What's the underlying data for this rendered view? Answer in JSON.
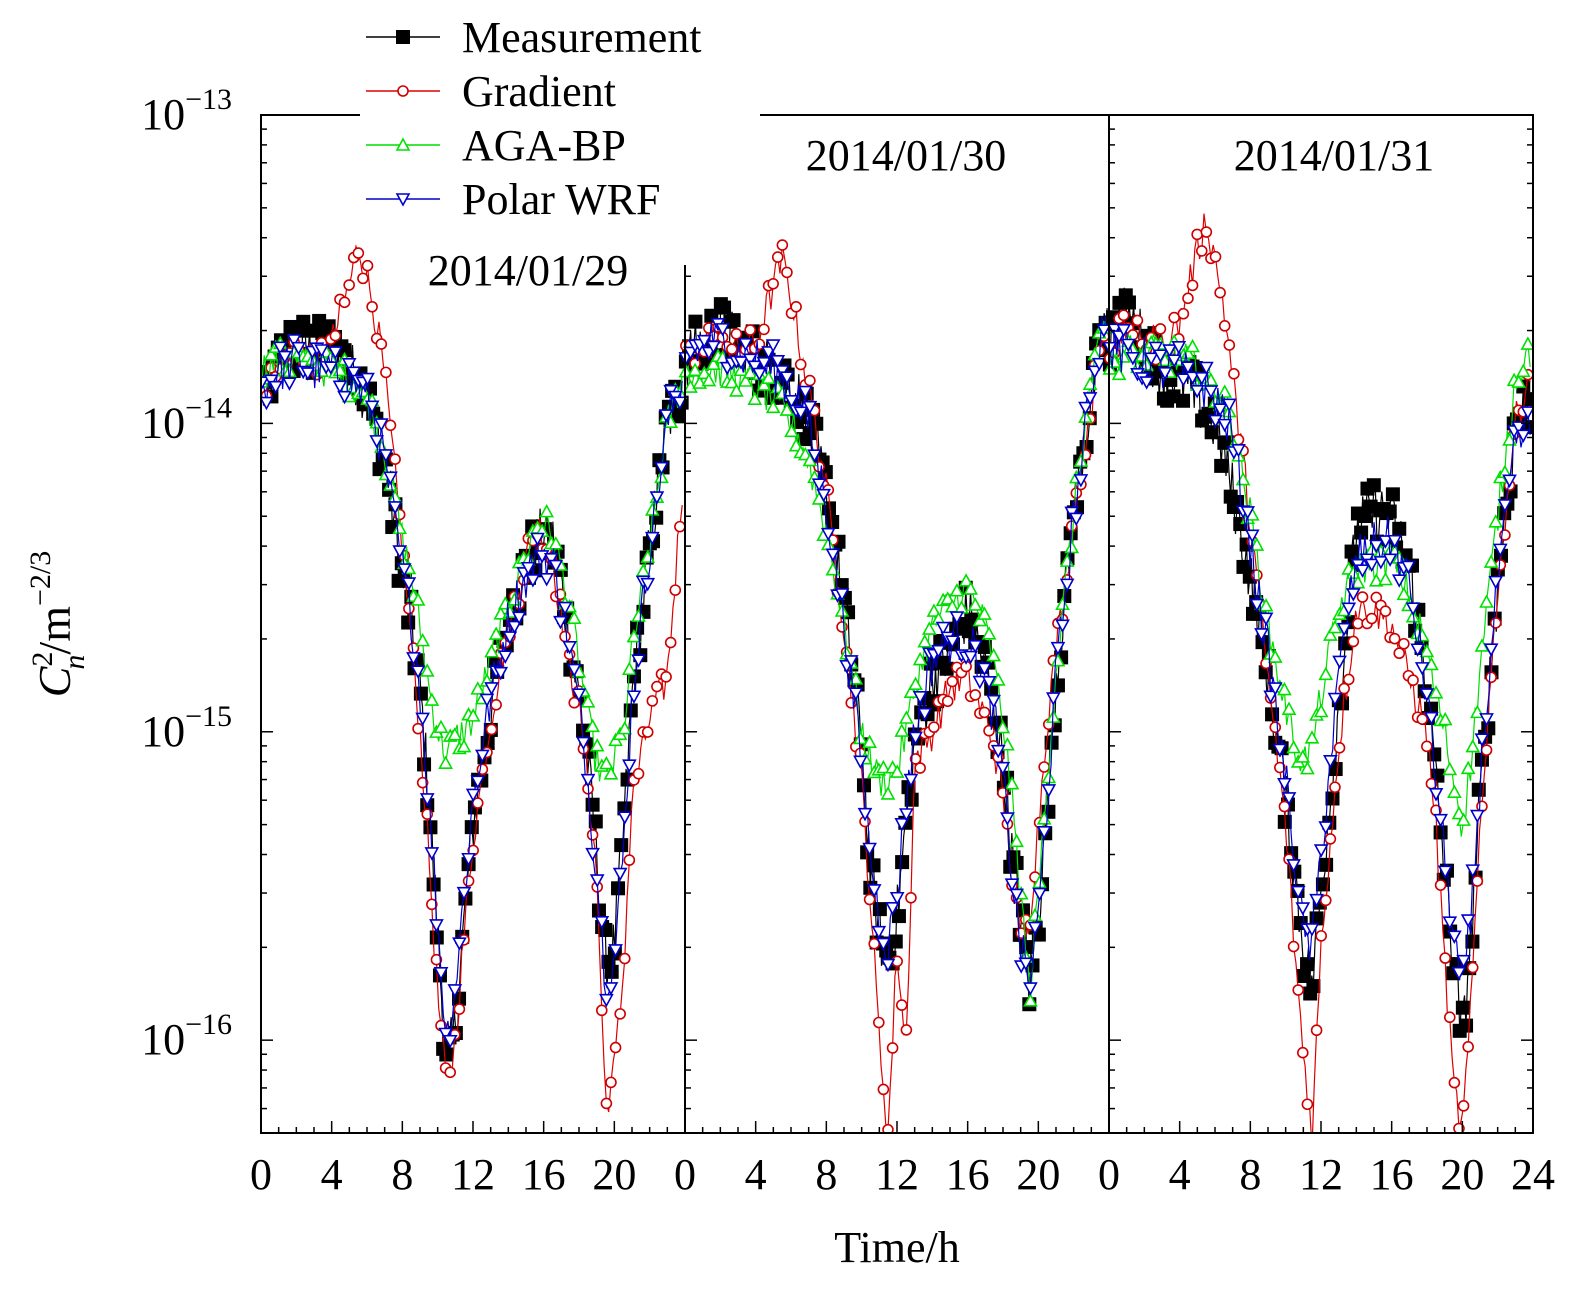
{
  "chart_data": {
    "type": "line",
    "title": "",
    "xlabel": "Time/h",
    "ylabel": {
      "base": "C",
      "sup": "2",
      "sub": "n",
      "rest": "/m",
      "rest_sup": "−2/3"
    },
    "yscale": "log",
    "ylim": [
      5e-17,
      1e-13
    ],
    "y_ticks": [
      {
        "value": 1e-13,
        "base": "10",
        "exp": "−13"
      },
      {
        "value": 1e-14,
        "base": "10",
        "exp": "−14"
      },
      {
        "value": 1e-15,
        "base": "10",
        "exp": "−15"
      },
      {
        "value": 1e-16,
        "base": "10",
        "exp": "−16"
      }
    ],
    "legend_position": "top-left",
    "series": [
      {
        "name": "Measurement",
        "color": "#000000",
        "marker": "filled-square",
        "line": "#000000"
      },
      {
        "name": "Gradient",
        "color": "#cc0000",
        "marker": "open-circle",
        "line": "#dd0000"
      },
      {
        "name": "AGA-BP",
        "color": "#00e000",
        "marker": "open-triangle-up",
        "line": "#00dd00"
      },
      {
        "name": "Polar WRF",
        "color": "#0000cc",
        "marker": "open-triangle-down",
        "line": "#0000cc"
      }
    ],
    "panels": [
      {
        "label": "2014/01/29",
        "xlim": [
          0,
          24
        ],
        "x_tick_labels": [
          "0",
          "4",
          "8",
          "12",
          "16",
          "20"
        ],
        "x": [
          0,
          1,
          2,
          3,
          4,
          5,
          5.5,
          6,
          6.5,
          7,
          7.5,
          8,
          8.5,
          9,
          9.5,
          10,
          10.5,
          11,
          11.5,
          12,
          13,
          14,
          15,
          15.5,
          16,
          16.5,
          17,
          17.5,
          18,
          18.5,
          19,
          19.5,
          20,
          20.5,
          21,
          22,
          23,
          24
        ],
        "Measurement": [
          1.2e-14,
          1.6e-14,
          1.8e-14,
          1.7e-14,
          1.8e-14,
          1.5e-14,
          1.4e-14,
          1.2e-14,
          1e-14,
          7.5e-15,
          5e-15,
          3.2e-15,
          2.2e-15,
          1.4e-15,
          6e-16,
          2.2e-16,
          8e-17,
          1.1e-16,
          2.4e-16,
          5e-16,
          1.2e-15,
          2.4e-15,
          3.4e-15,
          4e-15,
          4.4e-15,
          4.2e-15,
          3e-15,
          1.9e-15,
          1.3e-15,
          8e-16,
          4e-16,
          1.8e-16,
          2e-16,
          4.5e-16,
          1.3e-15,
          4e-15,
          1e-14,
          1.4e-14
        ],
        "Gradient": [
          1.3e-14,
          1.6e-14,
          1.7e-14,
          1.6e-14,
          1.8e-14,
          2.8e-14,
          3.8e-14,
          3e-14,
          2.2e-14,
          1.4e-14,
          7.5e-15,
          4e-15,
          2e-15,
          1e-15,
          4e-16,
          1.4e-16,
          7e-17,
          1e-16,
          2.2e-16,
          4.5e-16,
          1.1e-15,
          2.2e-15,
          3.6e-15,
          4.8e-15,
          4.4e-15,
          3.6e-15,
          2.4e-15,
          1.6e-15,
          1.2e-15,
          7e-16,
          3.5e-16,
          6e-17,
          8e-17,
          1.6e-16,
          6e-16,
          1.1e-15,
          1.5e-15,
          8e-15
        ],
        "AGA-BP": [
          1.5e-14,
          1.6e-14,
          1.6e-14,
          1.5e-14,
          1.5e-14,
          1.4e-14,
          1.3e-14,
          1.2e-14,
          1e-14,
          8e-15,
          6e-15,
          4.2e-15,
          3.2e-15,
          2.2e-15,
          1.4e-15,
          1e-15,
          8.5e-16,
          9.5e-16,
          1e-15,
          1.1e-15,
          1.7e-15,
          2.6e-15,
          3.6e-15,
          4.6e-15,
          4.8e-15,
          4.2e-15,
          3.4e-15,
          2.5e-15,
          1.7e-15,
          1.1e-15,
          8e-16,
          7e-16,
          8e-16,
          1e-15,
          1.8e-15,
          4e-15,
          1e-14,
          1.5e-14
        ],
        "Polar WRF": [
          1.3e-14,
          1.5e-14,
          1.6e-14,
          1.5e-14,
          1.5e-14,
          1.4e-14,
          1.3e-14,
          1.2e-14,
          1e-14,
          7.5e-15,
          5e-15,
          3.4e-15,
          2.4e-15,
          1.4e-15,
          6e-16,
          2.4e-16,
          1e-16,
          1.5e-16,
          3e-16,
          6e-16,
          1.3e-15,
          2.3e-15,
          3.2e-15,
          3.6e-15,
          3.8e-15,
          3.6e-15,
          2.6e-15,
          1.8e-15,
          1.2e-15,
          7e-16,
          3.5e-16,
          1.6e-16,
          1.8e-16,
          4e-16,
          1.3e-15,
          4e-15,
          1e-14,
          1.5e-14
        ]
      },
      {
        "label": "2014/01/30",
        "xlim": [
          0,
          24
        ],
        "x_tick_labels": [
          "0",
          "4",
          "8",
          "12",
          "16",
          "20"
        ],
        "x": [
          0,
          1,
          2,
          3,
          4,
          5,
          5.5,
          6,
          6.5,
          7,
          8,
          9,
          10,
          10.5,
          11,
          11.5,
          12,
          12.5,
          13,
          14,
          15,
          16,
          17,
          17.5,
          18,
          18.5,
          19,
          19.5,
          20,
          20.5,
          21,
          22,
          23,
          24
        ],
        "Measurement": [
          1.6e-14,
          1.8e-14,
          2e-14,
          1.8e-14,
          1.6e-14,
          1.5e-14,
          1.4e-14,
          1.3e-14,
          1.2e-14,
          1e-14,
          6e-15,
          2.6e-15,
          9e-16,
          3.5e-16,
          2.2e-16,
          1.8e-16,
          2.5e-16,
          5e-16,
          9e-16,
          1.5e-15,
          1.8e-15,
          2.5e-15,
          1.6e-15,
          1.2e-15,
          8e-16,
          4e-16,
          2.5e-16,
          1.5e-16,
          2.5e-16,
          6e-16,
          1.5e-15,
          5e-15,
          1.2e-14,
          2.5e-14
        ],
        "Gradient": [
          1.6e-14,
          1.8e-14,
          1.9e-14,
          1.7e-14,
          1.8e-14,
          2.8e-14,
          3.4e-14,
          2.6e-14,
          1.8e-14,
          1.3e-14,
          6e-15,
          2.2e-15,
          7e-16,
          2.8e-16,
          1e-16,
          5e-17,
          2e-16,
          9e-17,
          8e-16,
          1e-15,
          1.4e-15,
          1.5e-15,
          1.1e-15,
          9e-16,
          6e-16,
          3.5e-16,
          2e-16,
          2.5e-16,
          5e-16,
          1.1e-15,
          1.8e-15,
          5e-15,
          1.2e-14,
          2.4e-14
        ],
        "AGA-BP": [
          1.5e-14,
          1.5e-14,
          1.5e-14,
          1.4e-14,
          1.3e-14,
          1.2e-14,
          1.1e-14,
          1e-14,
          9e-15,
          7.5e-15,
          4.5e-15,
          2.2e-15,
          1e-15,
          8e-16,
          7e-16,
          7e-16,
          7.5e-16,
          1e-15,
          1.4e-15,
          2.2e-15,
          2.6e-15,
          2.9e-15,
          2.2e-15,
          1.6e-15,
          1.1e-15,
          6e-16,
          3e-16,
          1.4e-16,
          3e-16,
          7e-16,
          1.6e-15,
          5e-15,
          1.4e-14,
          2.2e-14
        ],
        "Polar WRF": [
          1.6e-14,
          1.8e-14,
          1.9e-14,
          1.7e-14,
          1.6e-14,
          1.5e-14,
          1.4e-14,
          1.3e-14,
          1.2e-14,
          1e-14,
          5.5e-15,
          2.2e-15,
          8e-16,
          4e-16,
          2.5e-16,
          2e-16,
          3e-16,
          6e-16,
          1e-15,
          1.7e-15,
          2e-15,
          2e-15,
          1.5e-15,
          1.1e-15,
          7e-16,
          3.5e-16,
          2e-16,
          1.5e-16,
          2.5e-16,
          6e-16,
          1.5e-15,
          5e-15,
          1.3e-14,
          2.8e-14
        ]
      },
      {
        "label": "2014/01/31",
        "xlim": [
          0,
          24
        ],
        "x_tick_labels": [
          "0",
          "4",
          "8",
          "12",
          "16",
          "20",
          "24"
        ],
        "x": [
          0,
          1,
          2,
          3,
          4,
          4.5,
          5,
          5.5,
          6,
          6.5,
          7,
          8,
          9,
          10,
          10.5,
          11,
          11.5,
          12,
          13,
          14,
          15,
          16,
          17,
          18,
          18.5,
          19,
          19.5,
          20,
          20.5,
          21,
          22,
          23,
          24
        ],
        "Measurement": [
          1.8e-14,
          2.3e-14,
          1.8e-14,
          1.5e-14,
          1.4e-14,
          1.3e-14,
          1.2e-14,
          1.1e-14,
          1e-14,
          8e-15,
          6e-15,
          3.2e-15,
          1.5e-15,
          6e-16,
          3.5e-16,
          2e-16,
          1.5e-16,
          3e-16,
          1.2e-15,
          4.5e-15,
          5.2e-15,
          5e-15,
          3.4e-15,
          1.4e-15,
          7e-16,
          3.5e-16,
          1.8e-16,
          1e-16,
          2.2e-16,
          6e-16,
          3e-15,
          1e-14,
          1.3e-14
        ],
        "Gradient": [
          1.8e-14,
          2e-14,
          1.9e-14,
          1.8e-14,
          2.1e-14,
          2.8e-14,
          3.6e-14,
          4.6e-14,
          3.4e-14,
          2.4e-14,
          1.4e-14,
          4.8e-15,
          1.5e-15,
          5e-16,
          2e-16,
          9e-17,
          5e-17,
          2e-16,
          9e-16,
          2.5e-15,
          2.5e-15,
          2.2e-15,
          1.5e-15,
          1e-15,
          5e-16,
          1.8e-16,
          7e-17,
          5e-17,
          1.3e-16,
          5e-16,
          3e-15,
          1e-14,
          1.6e-14
        ],
        "AGA-BP": [
          1.6e-14,
          1.7e-14,
          1.7e-14,
          1.7e-14,
          1.6e-14,
          1.6e-14,
          1.5e-14,
          1.4e-14,
          1.3e-14,
          1.2e-14,
          1e-14,
          5e-15,
          2.2e-15,
          1.2e-15,
          9e-16,
          8e-16,
          9e-16,
          1.3e-15,
          2.5e-15,
          3.4e-15,
          3.5e-15,
          3.6e-15,
          2.8e-15,
          1.8e-15,
          1.3e-15,
          1e-15,
          7e-16,
          5e-16,
          8e-16,
          1.6e-15,
          5e-15,
          1.4e-14,
          1.8e-14
        ],
        "Polar WRF": [
          1.7e-14,
          1.7e-14,
          1.6e-14,
          1.5e-14,
          1.5e-14,
          1.4e-14,
          1.4e-14,
          1.3e-14,
          1.2e-14,
          1.1e-14,
          9e-15,
          4e-15,
          1.8e-15,
          7e-16,
          4e-16,
          2.2e-16,
          2e-16,
          4e-16,
          1.5e-15,
          3.6e-15,
          4e-15,
          4.2e-15,
          3e-15,
          1.3e-15,
          7e-16,
          4e-16,
          2.2e-16,
          1.4e-16,
          2.5e-16,
          7e-16,
          3e-15,
          8.5e-15,
          1e-14
        ]
      }
    ]
  }
}
